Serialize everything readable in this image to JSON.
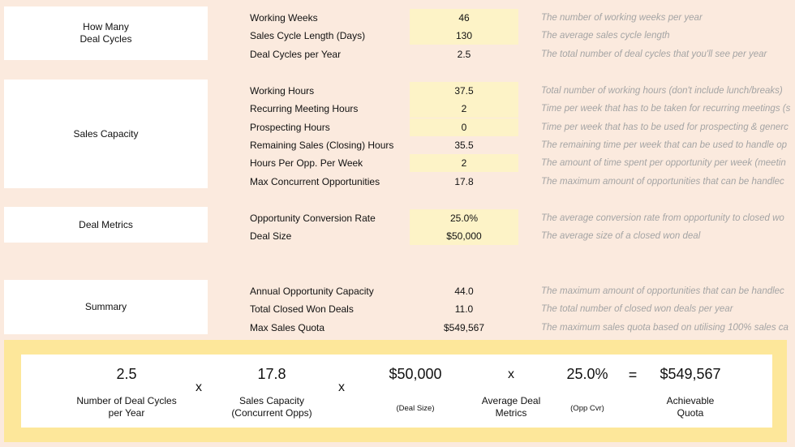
{
  "sections": [
    {
      "title": "How Many\nDeal Cycles"
    },
    {
      "title": "Sales Capacity"
    },
    {
      "title": "Deal Metrics"
    },
    {
      "title": "Summary"
    }
  ],
  "rows": [
    {
      "label": "Working Weeks",
      "value": "46",
      "input": true,
      "desc": "The number of working weeks per year"
    },
    {
      "label": "Sales Cycle Length (Days)",
      "value": "130",
      "input": true,
      "desc": "The average sales cycle length"
    },
    {
      "label": "Deal Cycles per Year",
      "value": "2.5",
      "input": false,
      "desc": "The total number of deal cycles that you'll see per year"
    },
    {
      "label": "Working Hours",
      "value": "37.5",
      "input": true,
      "desc": "Total number of working hours (don't include lunch/breaks)"
    },
    {
      "label": "Recurring Meeting Hours",
      "value": "2",
      "input": true,
      "desc": "Time per week that has to be taken for recurring meetings (s"
    },
    {
      "label": "Prospecting Hours",
      "value": "0",
      "input": true,
      "desc": "Time per week that has to be used for prospecting & generc"
    },
    {
      "label": "Remaining Sales (Closing) Hours",
      "value": "35.5",
      "input": false,
      "desc": "The remaining time per week that can be used to handle op"
    },
    {
      "label": "Hours Per Opp. Per Week",
      "value": "2",
      "input": true,
      "desc": "The amount of time spent per opportunity per week (meetin"
    },
    {
      "label": "Max Concurrent Opportunities",
      "value": "17.8",
      "input": false,
      "desc": "The maximum amount of opportunities that can be handlec"
    },
    {
      "label": "Opportunity Conversion Rate",
      "value": "25.0%",
      "input": true,
      "desc": "The average conversion rate from opportunity to closed wo"
    },
    {
      "label": "Deal Size",
      "value": "$50,000",
      "input": true,
      "desc": "The average size of a closed won deal"
    },
    {
      "label": "Annual Opportunity Capacity",
      "value": "44.0",
      "input": false,
      "desc": "The maximum amount of opportunities that can be handlec"
    },
    {
      "label": "Total Closed Won Deals",
      "value": "11.0",
      "input": false,
      "desc": "The total number of closed won deals per year"
    },
    {
      "label": "Max Sales Quota",
      "value": "$549,567",
      "input": false,
      "desc": "The maximum sales quota based on utilising 100% sales ca"
    }
  ],
  "summary": {
    "terms": [
      {
        "value": "2.5",
        "caption": "Number of Deal Cycles\nper Year"
      },
      {
        "value": "17.8",
        "caption": "Sales Capacity\n(Concurrent Opps)"
      },
      {
        "value": "$50,000",
        "caption": "(Deal Size)"
      },
      {
        "value": "25.0%",
        "caption": "(Opp Cvr)"
      },
      {
        "value": "$549,567",
        "caption": "Achievable\nQuota"
      }
    ],
    "mid_caption": "Average Deal\nMetrics",
    "ops": [
      "x",
      "x",
      "x",
      "="
    ]
  }
}
